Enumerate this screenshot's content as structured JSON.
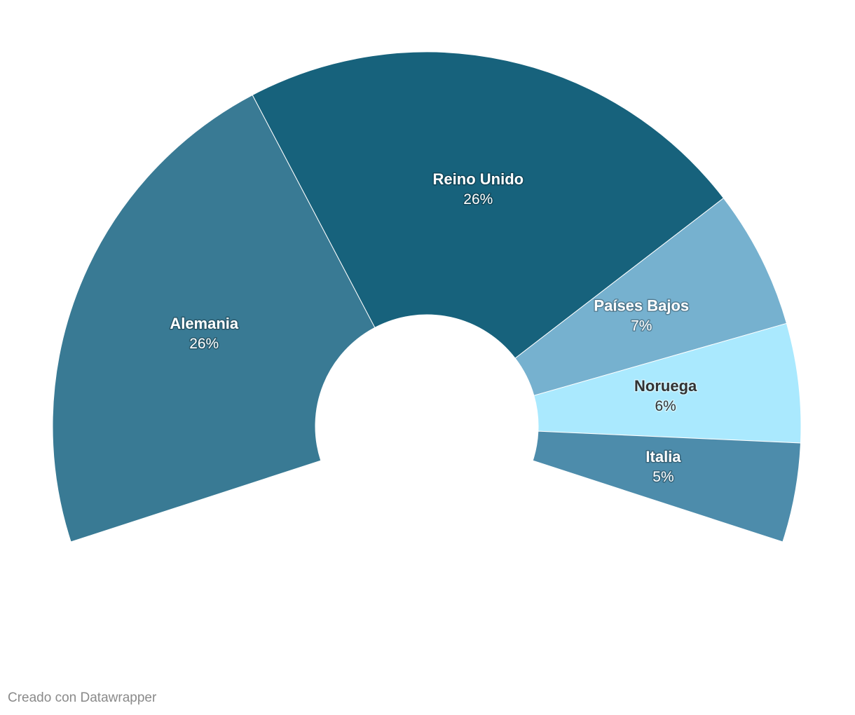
{
  "chart_data": {
    "type": "pie",
    "variant": "donut-partial-arc",
    "categories": [
      "Alemania",
      "Reino Unido",
      "Países Bajos",
      "Noruega",
      "Italia"
    ],
    "values": [
      26,
      26,
      7,
      6,
      5
    ],
    "labels": [
      "26%",
      "26%",
      "7%",
      "6%",
      "5%"
    ],
    "colors": [
      "#397a94",
      "#17627c",
      "#76b1cf",
      "#aae9fe",
      "#4d8cab"
    ],
    "label_colors": [
      "#ffffff",
      "#ffffff",
      "#ffffff",
      "#333333",
      "#ffffff"
    ],
    "arc_start_deg": -108,
    "arc_end_deg": 108,
    "unit": "%"
  },
  "footer": {
    "credit": "Creado con Datawrapper"
  }
}
